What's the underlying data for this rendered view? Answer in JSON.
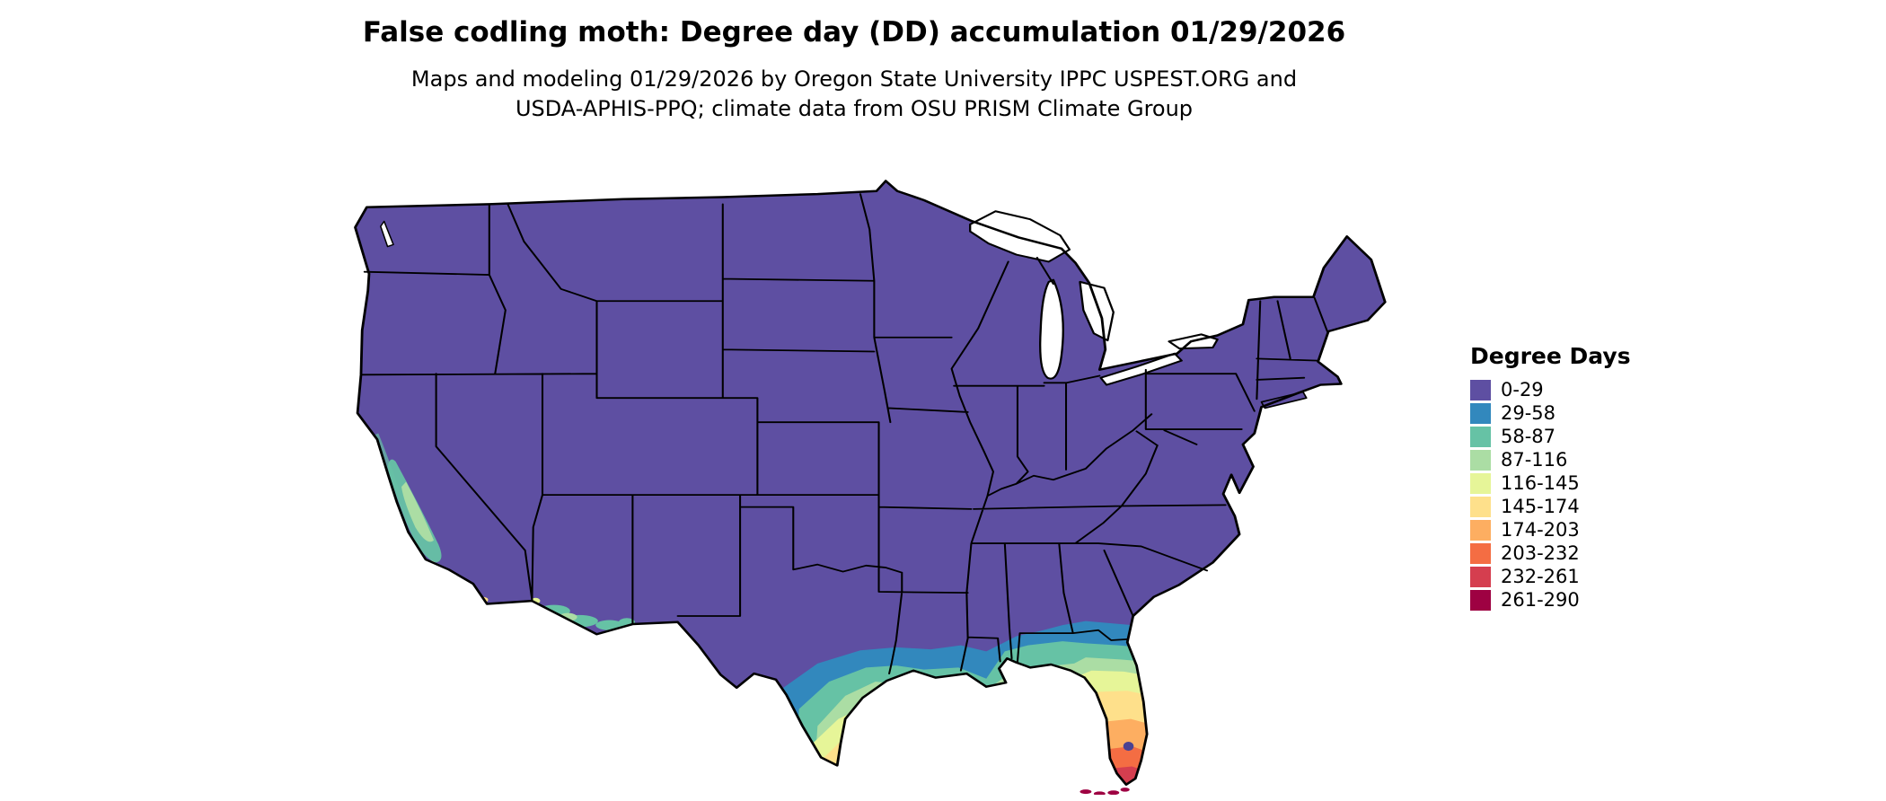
{
  "title": "False codling moth: Degree day (DD) accumulation 01/29/2026",
  "subtitle_line1": "Maps and modeling 01/29/2026 by Oregon State University IPPC USPEST.ORG and",
  "subtitle_line2": "USDA-APHIS-PPQ; climate data from OSU PRISM Climate Group",
  "map": {
    "description": "Contiguous United States choropleth of degree day accumulation",
    "base_color": "#5e4fa2",
    "border_color": "#000000",
    "water_color": "#ffffff"
  },
  "legend": {
    "title": "Degree Days",
    "entries": [
      {
        "label": "0-29",
        "color": "#5e4fa2"
      },
      {
        "label": "29-58",
        "color": "#3288bd"
      },
      {
        "label": "58-87",
        "color": "#66c2a5"
      },
      {
        "label": "87-116",
        "color": "#abdda4"
      },
      {
        "label": "116-145",
        "color": "#e6f598"
      },
      {
        "label": "145-174",
        "color": "#fee08b"
      },
      {
        "label": "174-203",
        "color": "#fdae61"
      },
      {
        "label": "203-232",
        "color": "#f46d43"
      },
      {
        "label": "232-261",
        "color": "#d53e4f"
      },
      {
        "label": "261-290",
        "color": "#9e0142"
      }
    ]
  }
}
